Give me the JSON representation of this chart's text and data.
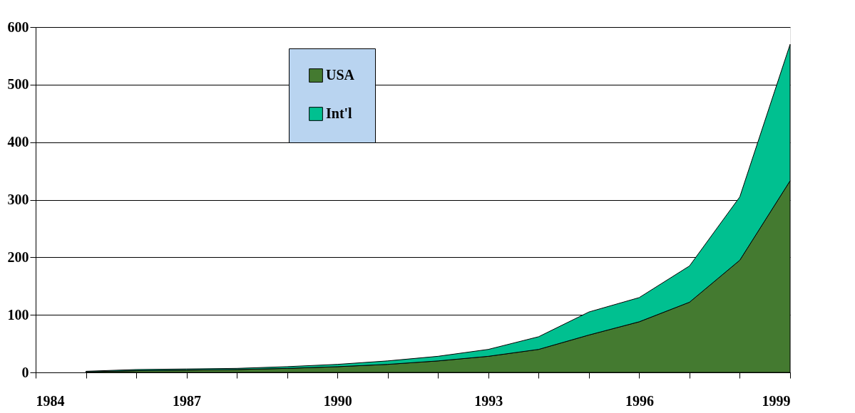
{
  "chart_data": {
    "type": "area",
    "stacked": true,
    "x": [
      1985,
      1986,
      1987,
      1988,
      1989,
      1990,
      1991,
      1992,
      1993,
      1994,
      1995,
      1996,
      1997,
      1998,
      1999
    ],
    "series": [
      {
        "name": "USA",
        "color": "#447a30",
        "values": [
          1,
          3,
          4,
          5,
          7,
          10,
          14,
          20,
          28,
          40,
          65,
          88,
          122,
          195,
          333
        ]
      },
      {
        "name": "Int'l",
        "color": "#00c090",
        "values": [
          1,
          2,
          2,
          2,
          3,
          4,
          6,
          8,
          12,
          22,
          40,
          42,
          63,
          110,
          237
        ]
      }
    ],
    "xlim": [
      1984,
      1999
    ],
    "xticks": [
      1984,
      {
        "value": 1985,
        "label": null
      },
      {
        "value": 1986,
        "label": null
      },
      1987,
      {
        "value": 1988,
        "label": null
      },
      {
        "value": 1989,
        "label": null
      },
      1990,
      {
        "value": 1991,
        "label": null
      },
      {
        "value": 1992,
        "label": null
      },
      1993,
      {
        "value": 1994,
        "label": null
      },
      {
        "value": 1995,
        "label": null
      },
      1996,
      {
        "value": 1997,
        "label": null
      },
      {
        "value": 1998,
        "label": null
      },
      1999
    ],
    "ylim": [
      0,
      600
    ],
    "yticks": [
      0,
      100,
      200,
      300,
      400,
      500,
      600
    ],
    "grid": "y",
    "legend": "top"
  }
}
